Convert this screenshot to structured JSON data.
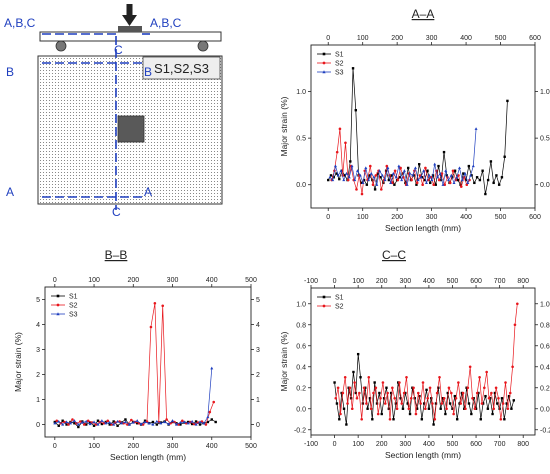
{
  "diagram": {
    "labels": {
      "abc_left": "A,B,C",
      "abc_right": "A,B,C",
      "c_top": "C",
      "c_bottom": "C",
      "b_left": "B",
      "b_right": "B",
      "a_left": "A",
      "a_right": "A",
      "sensors": "S1,S2,S3"
    },
    "colors": {
      "section_line": "#1f3fbf",
      "text": "#1f3fbf",
      "beam": "#ffffff",
      "block": "#595959"
    }
  },
  "chart_data": [
    {
      "type": "line",
      "title": "A–A",
      "xlabel": "Section length (mm)",
      "ylabel": "Major strain (%)",
      "xlim": [
        -50,
        600
      ],
      "ylim": [
        -0.25,
        1.5
      ],
      "xticks": [
        "0",
        "100",
        "200",
        "300",
        "400",
        "500",
        "600"
      ],
      "yticks": [
        "0.0",
        "0.5",
        "1.0"
      ],
      "grid": false,
      "legend": "top-left",
      "series": [
        {
          "name": "S1",
          "color": "#000000",
          "marker": "square",
          "x": [
            0,
            8,
            16,
            24,
            32,
            40,
            48,
            56,
            64,
            72,
            80,
            88,
            96,
            104,
            112,
            120,
            128,
            136,
            144,
            152,
            160,
            168,
            176,
            184,
            192,
            200,
            208,
            216,
            224,
            232,
            240,
            248,
            256,
            264,
            272,
            280,
            288,
            296,
            304,
            312,
            320,
            328,
            336,
            344,
            352,
            360,
            368,
            376,
            384,
            392,
            400,
            408,
            416,
            424,
            432,
            440,
            448,
            456,
            464,
            472,
            480,
            488,
            496,
            504,
            512,
            520
          ],
          "y": [
            0.05,
            0.1,
            0.08,
            0.12,
            0.06,
            0.15,
            0.1,
            0.05,
            0.25,
            1.25,
            0.8,
            0.1,
            0.02,
            0.05,
            0.0,
            0.1,
            0.05,
            -0.05,
            0.12,
            0.08,
            0.02,
            0.15,
            0.05,
            0.1,
            0.0,
            0.05,
            0.08,
            0.12,
            0.02,
            0.18,
            0.05,
            0.1,
            0.0,
            0.22,
            0.08,
            0.05,
            0.15,
            0.02,
            0.1,
            0.0,
            0.2,
            0.05,
            0.35,
            0.1,
            0.02,
            0.08,
            0.15,
            0.05,
            0.0,
            0.12,
            0.05,
            0.2,
            0.1,
            0.02,
            0.08,
            0.05,
            0.15,
            -0.1,
            0.05,
            0.25,
            0.02,
            0.1,
            0.0,
            0.08,
            0.3,
            0.9
          ]
        },
        {
          "name": "S2",
          "color": "#e8171d",
          "marker": "circle",
          "x": [
            10,
            18,
            26,
            34,
            42,
            50,
            58,
            66,
            74,
            82,
            90,
            98,
            106,
            114,
            122,
            130,
            138,
            146,
            154,
            162,
            170,
            178,
            186,
            194,
            202,
            210,
            218,
            226,
            234,
            242,
            250,
            258,
            266,
            274,
            282,
            290,
            298,
            306,
            314,
            322,
            330,
            338,
            346,
            354,
            362,
            370,
            378,
            386,
            394,
            402,
            410
          ],
          "y": [
            0.05,
            0.15,
            0.35,
            0.6,
            0.1,
            0.45,
            0.05,
            0.2,
            0.05,
            -0.05,
            0.1,
            -0.1,
            0.15,
            0.05,
            0.2,
            0.0,
            0.1,
            0.15,
            -0.05,
            0.05,
            0.2,
            0.1,
            0.02,
            0.15,
            0.05,
            0.18,
            0.08,
            0.0,
            0.12,
            0.05,
            0.15,
            0.02,
            0.1,
            0.0,
            0.18,
            0.05,
            0.08,
            0.0,
            0.15,
            0.05,
            0.12,
            0.0,
            0.08,
            0.02,
            0.15,
            0.05,
            0.1,
            -0.02,
            0.08,
            0.0,
            0.05
          ]
        },
        {
          "name": "S3",
          "color": "#1f3fbf",
          "marker": "triangle",
          "x": [
            5,
            13,
            21,
            29,
            37,
            45,
            53,
            61,
            69,
            77,
            85,
            93,
            101,
            109,
            117,
            125,
            133,
            141,
            149,
            157,
            165,
            173,
            181,
            189,
            197,
            205,
            213,
            221,
            229,
            237,
            245,
            253,
            261,
            269,
            277,
            285,
            293,
            301,
            309,
            317,
            325,
            333,
            341,
            349,
            357,
            365,
            373,
            381,
            389,
            397,
            405,
            413,
            421,
            429
          ],
          "y": [
            0.08,
            0.05,
            0.2,
            0.1,
            0.15,
            0.05,
            0.12,
            0.08,
            0.2,
            0.05,
            0.15,
            0.1,
            0.02,
            0.18,
            0.05,
            0.12,
            0.08,
            0.0,
            0.15,
            0.1,
            0.05,
            0.18,
            0.02,
            0.12,
            0.08,
            0.2,
            0.05,
            0.15,
            0.0,
            0.12,
            0.1,
            0.18,
            0.05,
            0.08,
            0.15,
            0.02,
            0.1,
            0.05,
            0.22,
            0.08,
            0.12,
            0.0,
            0.15,
            0.05,
            0.1,
            0.02,
            0.08,
            0.18,
            0.05,
            0.12,
            0.02,
            0.1,
            0.2,
            0.6
          ]
        }
      ]
    },
    {
      "type": "line",
      "title": "B–B",
      "xlabel": "Section length (mm)",
      "ylabel": "Major strain (%)",
      "xlim": [
        -25,
        500
      ],
      "ylim": [
        -0.5,
        5.5
      ],
      "xticks": [
        "0",
        "100",
        "200",
        "300",
        "400",
        "500"
      ],
      "yticks": [
        "0",
        "1",
        "2",
        "3",
        "4",
        "5"
      ],
      "grid": false,
      "legend": "top-left",
      "series": [
        {
          "name": "S1",
          "color": "#000000",
          "marker": "square",
          "x": [
            0,
            10,
            20,
            30,
            40,
            50,
            60,
            70,
            80,
            90,
            100,
            110,
            120,
            130,
            140,
            150,
            160,
            170,
            180,
            190,
            200,
            210,
            220,
            230,
            240,
            250,
            260,
            270,
            280,
            290,
            300,
            310,
            320,
            330,
            340,
            350,
            360,
            370,
            380,
            390,
            400,
            410
          ],
          "y": [
            0.1,
            -0.05,
            0.15,
            0.0,
            0.1,
            0.05,
            -0.1,
            0.12,
            0.0,
            0.08,
            -0.05,
            0.15,
            0.02,
            0.1,
            0.0,
            0.12,
            -0.05,
            0.08,
            0.2,
            0.0,
            0.1,
            0.05,
            0.0,
            0.15,
            0.05,
            0.1,
            0.0,
            0.08,
            0.12,
            0.0,
            0.1,
            0.05,
            0.0,
            0.08,
            0.1,
            0.02,
            0.12,
            0.0,
            0.05,
            0.1,
            0.2,
            0.1
          ]
        },
        {
          "name": "S2",
          "color": "#e8171d",
          "marker": "circle",
          "x": [
            5,
            15,
            25,
            35,
            45,
            55,
            65,
            75,
            85,
            95,
            105,
            115,
            125,
            135,
            145,
            155,
            165,
            175,
            185,
            195,
            205,
            215,
            225,
            235,
            245,
            255,
            265,
            275,
            285,
            295,
            305,
            315,
            325,
            335,
            345,
            355,
            365,
            375,
            385,
            395,
            405
          ],
          "y": [
            0.15,
            0.05,
            0.1,
            0.0,
            0.2,
            0.05,
            0.12,
            0.0,
            0.15,
            0.08,
            0.0,
            0.1,
            0.05,
            0.15,
            0.0,
            0.08,
            0.12,
            0.05,
            0.0,
            0.18,
            0.1,
            0.05,
            0.0,
            0.12,
            3.9,
            4.85,
            0.1,
            4.75,
            0.2,
            0.05,
            0.1,
            0.0,
            0.15,
            0.05,
            0.1,
            0.02,
            0.08,
            0.12,
            0.0,
            0.5,
            0.9
          ]
        },
        {
          "name": "S3",
          "color": "#1f3fbf",
          "marker": "triangle",
          "x": [
            0,
            10,
            20,
            30,
            40,
            50,
            60,
            70,
            80,
            90,
            100,
            110,
            120,
            130,
            140,
            150,
            160,
            170,
            180,
            190,
            200,
            210,
            220,
            230,
            240,
            250,
            260,
            270,
            280,
            290,
            300,
            310,
            320,
            330,
            340,
            350,
            360,
            370,
            380,
            390,
            400
          ],
          "y": [
            0.05,
            0.12,
            0.0,
            0.1,
            0.05,
            0.15,
            0.0,
            0.08,
            0.12,
            0.02,
            0.1,
            0.0,
            0.15,
            0.05,
            0.08,
            0.0,
            0.12,
            0.05,
            0.1,
            0.0,
            0.08,
            0.15,
            0.02,
            0.1,
            0.05,
            0.0,
            0.12,
            0.05,
            0.1,
            0.02,
            0.15,
            0.0,
            0.08,
            0.1,
            0.05,
            0.12,
            0.0,
            0.1,
            0.05,
            0.3,
            2.25
          ]
        }
      ]
    },
    {
      "type": "line",
      "title": "C–C",
      "xlabel": "Section length (mm)",
      "ylabel": "Major strain (%)",
      "xlim": [
        -100,
        850
      ],
      "ylim": [
        -0.25,
        1.15
      ],
      "xticks": [
        "-100",
        "0",
        "100",
        "200",
        "300",
        "400",
        "500",
        "600",
        "700",
        "800"
      ],
      "yticks": [
        "-0.2",
        "0.0",
        "0.2",
        "0.4",
        "0.6",
        "0.8",
        "1.0"
      ],
      "grid": false,
      "legend": "top-left",
      "series": [
        {
          "name": "S1",
          "color": "#000000",
          "marker": "square",
          "x": [
            0,
            10,
            20,
            30,
            40,
            50,
            60,
            70,
            80,
            90,
            100,
            110,
            120,
            130,
            140,
            150,
            160,
            170,
            180,
            190,
            200,
            210,
            220,
            230,
            240,
            250,
            260,
            270,
            280,
            290,
            300,
            310,
            320,
            330,
            340,
            350,
            360,
            370,
            380,
            390,
            400,
            410,
            420,
            430,
            440,
            450,
            460,
            470,
            480,
            490,
            500,
            510,
            520,
            530,
            540,
            550,
            560,
            570,
            580,
            590,
            600,
            610,
            620,
            630,
            640,
            650,
            660,
            670,
            680,
            690,
            700,
            710,
            720,
            730,
            740,
            750,
            760
          ],
          "y": [
            0.25,
            0.05,
            -0.1,
            0.15,
            0.0,
            -0.15,
            0.2,
            0.1,
            0.35,
            0.15,
            0.52,
            0.3,
            0.05,
            0.2,
            0.0,
            0.1,
            -0.1,
            0.25,
            0.05,
            0.15,
            -0.05,
            0.1,
            0.2,
            0.0,
            0.15,
            -0.1,
            0.05,
            0.25,
            0.1,
            0.0,
            0.15,
            0.05,
            -0.05,
            0.2,
            0.1,
            0.0,
            0.12,
            -0.1,
            0.05,
            0.18,
            0.0,
            0.1,
            -0.15,
            0.05,
            0.2,
            0.0,
            0.1,
            -0.05,
            0.15,
            0.05,
            0.0,
            0.12,
            -0.1,
            0.05,
            0.15,
            0.0,
            0.2,
            0.05,
            -0.05,
            0.1,
            0.0,
            0.15,
            -0.1,
            0.05,
            0.12,
            0.0,
            0.1,
            -0.05,
            0.15,
            0.05,
            0.0,
            0.1,
            -0.1,
            0.05,
            0.12,
            0.0,
            0.08
          ]
        },
        {
          "name": "S2",
          "color": "#e8171d",
          "marker": "circle",
          "x": [
            5,
            15,
            25,
            35,
            45,
            55,
            65,
            75,
            85,
            95,
            105,
            115,
            125,
            135,
            145,
            155,
            165,
            175,
            185,
            195,
            205,
            215,
            225,
            235,
            245,
            255,
            265,
            275,
            285,
            295,
            305,
            315,
            325,
            335,
            345,
            355,
            365,
            375,
            385,
            395,
            405,
            415,
            425,
            435,
            445,
            455,
            465,
            475,
            485,
            495,
            505,
            515,
            525,
            535,
            545,
            555,
            565,
            575,
            585,
            595,
            605,
            615,
            625,
            635,
            645,
            655,
            665,
            675,
            685,
            695,
            705,
            715,
            725,
            735,
            745,
            755,
            765,
            775
          ],
          "y": [
            0.1,
            0.2,
            -0.05,
            0.15,
            0.3,
            0.05,
            0.2,
            0.0,
            0.25,
            0.1,
            0.15,
            -0.1,
            0.2,
            0.05,
            0.3,
            0.0,
            0.15,
            0.2,
            -0.05,
            0.1,
            0.25,
            0.05,
            0.15,
            -0.1,
            0.2,
            0.1,
            0.0,
            0.25,
            0.05,
            0.15,
            0.3,
            0.0,
            0.1,
            0.2,
            -0.05,
            0.15,
            0.05,
            0.25,
            0.0,
            0.1,
            0.2,
            0.05,
            -0.1,
            0.15,
            0.3,
            0.05,
            0.1,
            0.0,
            0.2,
            0.15,
            -0.05,
            0.1,
            0.25,
            0.05,
            0.15,
            0.0,
            0.2,
            0.4,
            0.1,
            0.0,
            0.15,
            0.3,
            0.05,
            0.2,
            0.35,
            0.1,
            0.15,
            0.0,
            0.2,
            0.1,
            -0.1,
            0.05,
            0.25,
            0.0,
            0.15,
            0.4,
            0.8,
            1.0
          ]
        }
      ]
    }
  ]
}
